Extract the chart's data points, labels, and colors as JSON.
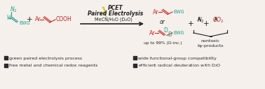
{
  "bg_color": "#f5f0eb",
  "teal": "#1a9a8a",
  "red": "#cc2222",
  "black": "#222222",
  "bullet_color": "#2a2a2a",
  "bullet1": "green paired electrolysis process",
  "bullet2": "free metal and chemical redox reagents",
  "bullet3": "wide functional-group compatibility",
  "label_pcet": "PCET",
  "label_pe": "Paired Electrolysis",
  "label_solvent": "MeCN/H₂O (D₂O)",
  "label_or": "or",
  "label_upto": "up to 99% (D-inc.)",
  "label_nontoxic": "nontoxic",
  "label_byproducts": "by-products"
}
